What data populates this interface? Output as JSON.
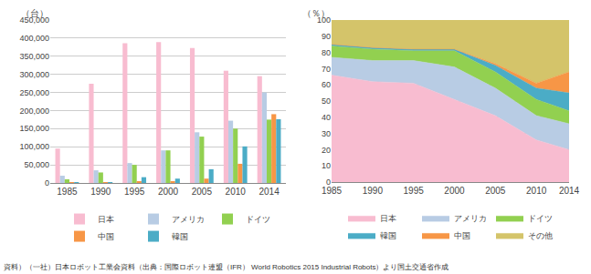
{
  "chart_data": [
    {
      "type": "bar",
      "ylabel": "（台）",
      "categories": [
        "1985",
        "1990",
        "1995",
        "2000",
        "2005",
        "2010",
        "2014"
      ],
      "series": [
        {
          "name": "日本",
          "color": "#f8bcd0",
          "values": [
            95000,
            274000,
            386000,
            389000,
            373000,
            310000,
            295000
          ]
        },
        {
          "name": "アメリカ",
          "color": "#b8cce4",
          "values": [
            20000,
            35000,
            55000,
            90000,
            140000,
            172000,
            250000
          ]
        },
        {
          "name": "ドイツ",
          "color": "#92d050",
          "values": [
            10000,
            29000,
            50000,
            90000,
            128000,
            150000,
            175000
          ]
        },
        {
          "name": "中国",
          "color": "#f79646",
          "values": [
            500,
            1000,
            3000,
            5000,
            12000,
            53000,
            190000
          ]
        },
        {
          "name": "韓国",
          "color": "#4bacc6",
          "values": [
            1000,
            2000,
            16000,
            12000,
            38000,
            101000,
            176000
          ]
        }
      ],
      "ylim": [
        0,
        450000
      ],
      "yticks": [
        0,
        {
          "value": 50000,
          "label": "50,000"
        },
        {
          "value": 100000,
          "label": "100,000"
        },
        {
          "value": 150000,
          "label": "150,000"
        },
        {
          "value": 200000,
          "label": "200,000"
        },
        {
          "value": 250000,
          "label": "250,000"
        },
        {
          "value": 300000,
          "label": "300,000"
        },
        {
          "value": 350000,
          "label": "350,000"
        },
        {
          "value": 400000,
          "label": "400,000"
        },
        {
          "value": 450000,
          "label": "450,000"
        }
      ],
      "grid": true,
      "legend": "bottom",
      "annotations": [
        "資料）（一社）日本ロボット工業会資料（出典：国際ロボット連盟（IFR） World Robotics 2015 Industrial Robots）より国土交通省作成"
      ]
    },
    {
      "type": "area",
      "stacked": true,
      "ylabel": "（％）",
      "x": [
        1985,
        1990,
        1995,
        2000,
        2005,
        2010,
        2014
      ],
      "series": [
        {
          "name": "日本",
          "color": "#f8bcd0",
          "values": [
            66,
            62,
            61,
            51,
            41,
            26,
            20
          ]
        },
        {
          "name": "アメリカ",
          "color": "#b8cce4",
          "values": [
            11,
            13,
            14,
            20,
            17,
            15,
            16
          ]
        },
        {
          "name": "ドイツ",
          "color": "#92d050",
          "values": [
            7,
            7,
            6,
            10,
            10,
            10,
            8
          ]
        },
        {
          "name": "韓国",
          "color": "#4bacc6",
          "values": [
            1,
            1,
            1,
            1,
            4,
            7,
            11
          ]
        },
        {
          "name": "中国",
          "color": "#f79646",
          "values": [
            0,
            0,
            0,
            0,
            1,
            3,
            13
          ]
        },
        {
          "name": "その他",
          "color": "#d4c46a",
          "values": [
            15,
            17,
            18,
            18,
            27,
            39,
            32
          ]
        }
      ],
      "xlim": [
        1985,
        2014
      ],
      "xticks": [
        1985,
        1990,
        1995,
        2000,
        2005,
        2010,
        2014
      ],
      "ylim": [
        0,
        100
      ],
      "yticks": [
        0,
        10,
        20,
        30,
        40,
        50,
        60,
        70,
        80,
        90,
        100
      ],
      "grid": true,
      "legend": "bottom"
    }
  ]
}
